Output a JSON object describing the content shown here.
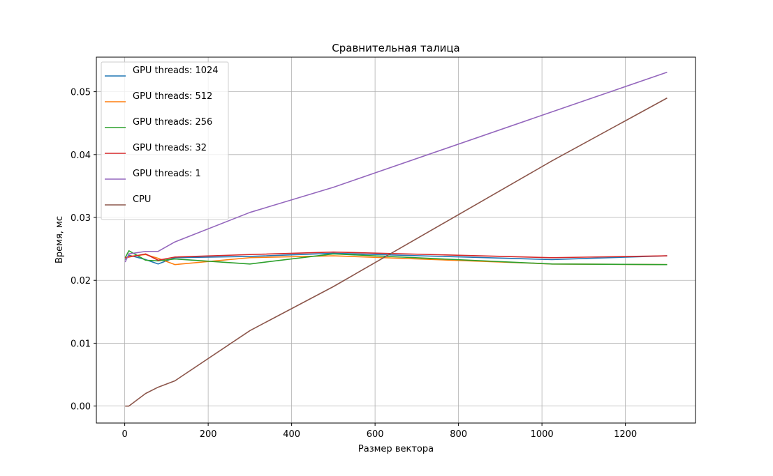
{
  "chart_data": {
    "type": "line",
    "title": "Сравнительная талица",
    "xlabel": "Размер вектора",
    "ylabel": "Время, мс",
    "xlim": [
      -68,
      1368
    ],
    "ylim": [
      -0.0027,
      0.0555
    ],
    "xticks": [
      0,
      200,
      400,
      600,
      800,
      1000,
      1200
    ],
    "xtick_labels": [
      "0",
      "200",
      "400",
      "600",
      "800",
      "1000",
      "1200"
    ],
    "yticks": [
      0.0,
      0.01,
      0.02,
      0.03,
      0.04,
      0.05
    ],
    "ytick_labels": [
      "0.00",
      "0.01",
      "0.02",
      "0.03",
      "0.04",
      "0.05"
    ],
    "grid": true,
    "legend_position": "top-left",
    "series": [
      {
        "name": "GPU threads: 1024",
        "color": "#1f77b4",
        "x": [
          1,
          10,
          50,
          80,
          120,
          300,
          500,
          1024,
          1300
        ],
        "y": [
          0.0233,
          0.024,
          0.0233,
          0.0226,
          0.0236,
          0.0238,
          0.0243,
          0.0233,
          0.0239
        ]
      },
      {
        "name": "GPU threads: 512",
        "color": "#ff7f0e",
        "x": [
          1,
          10,
          50,
          80,
          120,
          300,
          500,
          1024,
          1300
        ],
        "y": [
          0.0235,
          0.0238,
          0.0241,
          0.0235,
          0.0225,
          0.0236,
          0.0239,
          0.0226,
          0.0225
        ]
      },
      {
        "name": "GPU threads: 256",
        "color": "#2ca02c",
        "x": [
          1,
          10,
          50,
          80,
          120,
          300,
          500,
          1024,
          1300
        ],
        "y": [
          0.0236,
          0.0247,
          0.0232,
          0.0231,
          0.0234,
          0.0226,
          0.0242,
          0.0226,
          0.0225
        ]
      },
      {
        "name": "GPU threads: 32",
        "color": "#d62728",
        "x": [
          1,
          10,
          50,
          80,
          120,
          300,
          500,
          1024,
          1300
        ],
        "y": [
          0.0236,
          0.0237,
          0.0242,
          0.0232,
          0.0237,
          0.0241,
          0.0245,
          0.0236,
          0.0239
        ]
      },
      {
        "name": "GPU threads: 1",
        "color": "#9467bd",
        "x": [
          1,
          10,
          50,
          80,
          120,
          300,
          500,
          1024,
          1300
        ],
        "y": [
          0.0229,
          0.0242,
          0.0246,
          0.0246,
          0.0261,
          0.0308,
          0.0348,
          0.0468,
          0.0531
        ]
      },
      {
        "name": "CPU",
        "color": "#8c564b",
        "x": [
          1,
          10,
          50,
          80,
          120,
          300,
          500,
          1024,
          1300
        ],
        "y": [
          0.0,
          0.0,
          0.002,
          0.003,
          0.004,
          0.012,
          0.019,
          0.039,
          0.049
        ]
      }
    ]
  }
}
